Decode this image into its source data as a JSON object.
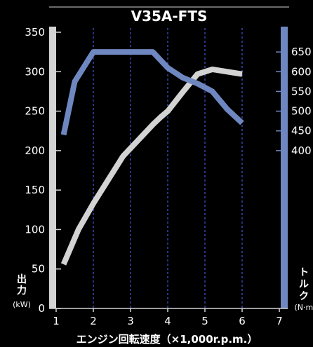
{
  "chart_data": {
    "type": "line",
    "title": "V35A-FTS",
    "xlabel": "エンジン回転速度（×1,000r.p.m.）",
    "x_ticks": [
      "1",
      "2",
      "3",
      "4",
      "5",
      "6",
      "7"
    ],
    "xlim": [
      1,
      7
    ],
    "y_left": {
      "label_chars": [
        "出",
        "力"
      ],
      "unit": "(kW)",
      "ticks": [
        "0",
        "50",
        "100",
        "150",
        "200",
        "250",
        "300",
        "350"
      ],
      "lim": [
        0,
        350
      ]
    },
    "y_right": {
      "label_chars": [
        "ト",
        "ル",
        "ク"
      ],
      "unit": "(N·m)",
      "ticks": [
        "400",
        "450",
        "500",
        "550",
        "600",
        "650"
      ],
      "lim": [
        0,
        700
      ]
    },
    "grid": {
      "vertical_dashed": true
    },
    "series": [
      {
        "axis": "left",
        "color": "#d3d3d3",
        "points": [
          [
            1.2,
            56
          ],
          [
            1.6,
            100
          ],
          [
            2.0,
            133
          ],
          [
            2.4,
            163
          ],
          [
            2.8,
            193
          ],
          [
            3.2,
            213
          ],
          [
            3.6,
            233
          ],
          [
            3.8,
            242
          ],
          [
            4.0,
            250
          ],
          [
            4.4,
            274
          ],
          [
            4.8,
            297
          ],
          [
            5.2,
            303
          ],
          [
            5.6,
            300
          ],
          [
            6.0,
            297
          ]
        ]
      },
      {
        "axis": "right",
        "color": "#6f87c0",
        "points": [
          [
            1.2,
            440
          ],
          [
            1.5,
            575
          ],
          [
            2.0,
            650
          ],
          [
            2.5,
            650
          ],
          [
            3.0,
            650
          ],
          [
            3.5,
            650
          ],
          [
            3.6,
            650
          ],
          [
            4.0,
            610
          ],
          [
            4.4,
            585
          ],
          [
            4.8,
            570
          ],
          [
            5.2,
            550
          ],
          [
            5.6,
            505
          ],
          [
            6.0,
            470
          ]
        ]
      }
    ]
  },
  "colors": {
    "background": "#000000",
    "left_axis_bar": "#d3d3d3",
    "right_axis_bar": "#6f87c0",
    "grid": "#3a52c8",
    "text": "#ffffff"
  }
}
